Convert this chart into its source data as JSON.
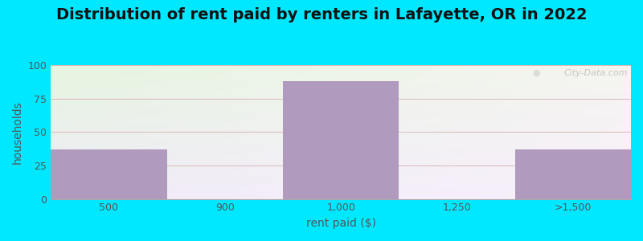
{
  "title": "Distribution of rent paid by renters in Lafayette, OR in 2022",
  "xlabel": "rent paid ($)",
  "ylabel": "households",
  "categories": [
    "500",
    "900",
    "1,000",
    "1,250",
    ">1,500"
  ],
  "values": [
    37,
    0,
    88,
    0,
    37
  ],
  "bar_color": "#b09abe",
  "ylim": [
    0,
    100
  ],
  "yticks": [
    0,
    25,
    50,
    75,
    100
  ],
  "background_color": "#00e8ff",
  "plot_bg_color_topleft": "#e6f5e0",
  "plot_bg_color_bottomright": "#f2eef8",
  "grid_color": "#dbb8b8",
  "title_fontsize": 14,
  "axis_label_fontsize": 10,
  "tick_fontsize": 9,
  "watermark_text": "City-Data.com"
}
